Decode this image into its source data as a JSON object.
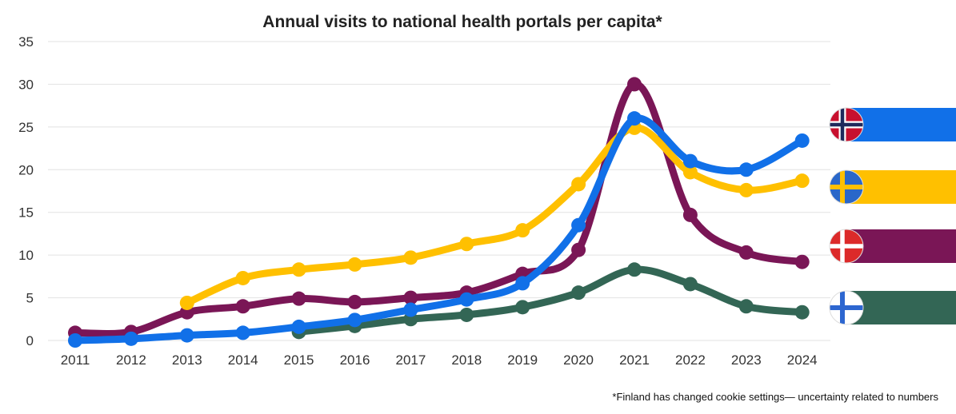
{
  "chart_data": {
    "type": "line",
    "title": "Annual visits to national health portals per capita*",
    "footnote": "*Finland has changed cookie settings— uncertainty related to numbers",
    "xlabel": "",
    "ylabel": "",
    "ylim": [
      0,
      35
    ],
    "yticks": [
      "0",
      "5",
      "10",
      "15",
      "20",
      "25",
      "30",
      "35"
    ],
    "ytick_values": [
      0,
      5,
      10,
      15,
      20,
      25,
      30,
      35
    ],
    "x": [
      "2011",
      "2012",
      "2013",
      "2014",
      "2015",
      "2016",
      "2017",
      "2018",
      "2019",
      "2020",
      "2021",
      "2022",
      "2023",
      "2024"
    ],
    "grid": true,
    "legend_placement": "right",
    "series": [
      {
        "name": "Finland",
        "flag": "finland-flag",
        "color": "#336655",
        "values": [
          null,
          null,
          null,
          null,
          1.0,
          1.7,
          2.5,
          3.0,
          3.9,
          5.6,
          8.3,
          6.6,
          4.0,
          3.3
        ]
      },
      {
        "name": "Denmark",
        "flag": "denmark-flag",
        "color": "#7a1656",
        "values": [
          0.9,
          1.0,
          3.3,
          4.0,
          4.9,
          4.5,
          5.0,
          5.6,
          7.8,
          10.6,
          30.0,
          14.7,
          10.3,
          9.2
        ]
      },
      {
        "name": "Sweden",
        "flag": "sweden-flag",
        "color": "#ffc000",
        "values": [
          null,
          null,
          4.4,
          7.3,
          8.3,
          8.9,
          9.7,
          11.3,
          12.9,
          18.3,
          24.9,
          19.7,
          17.6,
          18.7
        ]
      },
      {
        "name": "Norway",
        "flag": "norway-flag",
        "color": "#1170e8",
        "values": [
          0.0,
          0.2,
          0.6,
          0.9,
          1.6,
          2.4,
          3.6,
          4.8,
          6.7,
          13.5,
          26.0,
          21.0,
          20.0,
          23.4
        ]
      }
    ],
    "legend": [
      {
        "name": "Norway",
        "flag": "norway-flag",
        "color": "#1170e8"
      },
      {
        "name": "Sweden",
        "flag": "sweden-flag",
        "color": "#ffc000"
      },
      {
        "name": "Denmark",
        "flag": "denmark-flag",
        "color": "#7a1656"
      },
      {
        "name": "Finland",
        "flag": "finland-flag",
        "color": "#336655"
      }
    ]
  }
}
